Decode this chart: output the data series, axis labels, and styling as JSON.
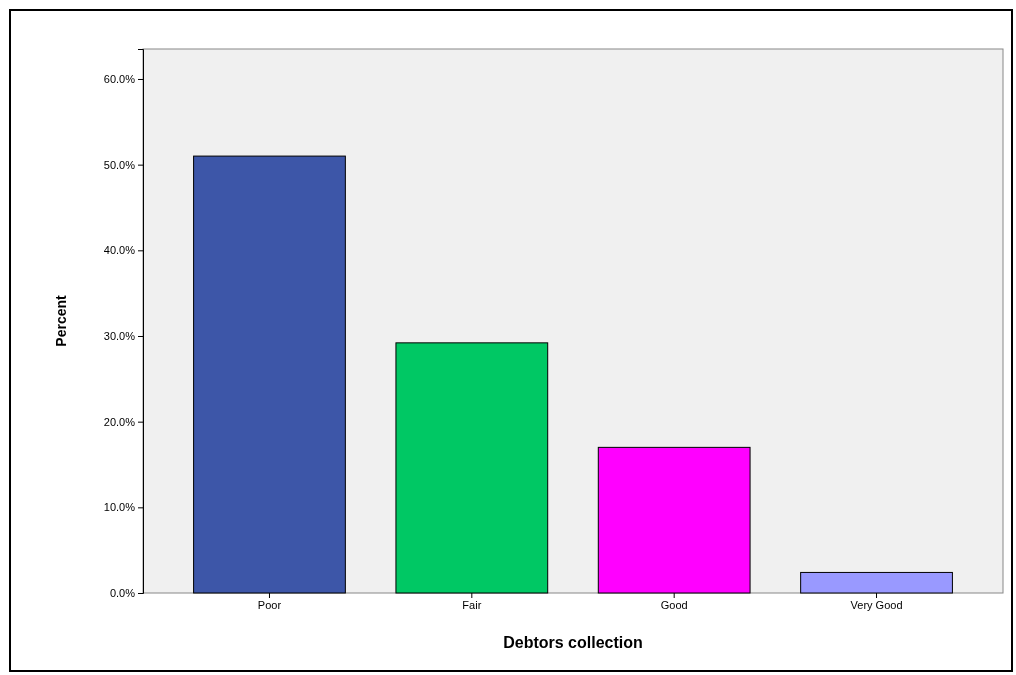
{
  "chart_data": {
    "type": "bar",
    "xlabel": "Debtors collection",
    "ylabel": "Percent",
    "categories": [
      "Poor",
      "Fair",
      "Good",
      "Very Good"
    ],
    "values": [
      51.0,
      29.2,
      17.0,
      2.4
    ],
    "colors": [
      "#3d56a8",
      "#00c864",
      "#ff00ff",
      "#9999ff"
    ],
    "ylim": [
      0,
      63.5
    ],
    "yticks": [
      {
        "value": 0,
        "label": "0.0%"
      },
      {
        "value": 10,
        "label": "10.0%"
      },
      {
        "value": 20,
        "label": "20.0%"
      },
      {
        "value": 30,
        "label": "30.0%"
      },
      {
        "value": 40,
        "label": "40.0%"
      },
      {
        "value": 50,
        "label": "50.0%"
      },
      {
        "value": 60,
        "label": "60.0%"
      }
    ],
    "grid": false
  }
}
